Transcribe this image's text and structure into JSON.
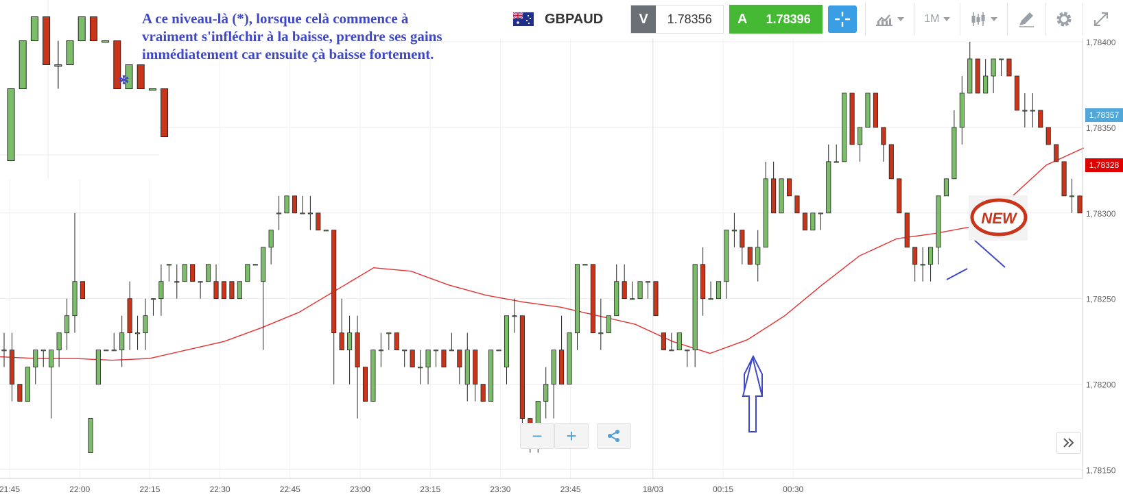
{
  "annotation": {
    "note": "A ce niveau-là (*), lorsque celà commence à vraiment s'infléchir à la baisse, prendre ses gains immédiatement car ensuite çà baisse fortement.",
    "asterisk": "*",
    "new_badge": "NEW"
  },
  "toolbar": {
    "pair": "GBPAUD",
    "sell_label": "V",
    "sell_price": "1.78356",
    "buy_label": "A",
    "buy_price": "1.78396",
    "timeframe": "1M"
  },
  "zoom": {
    "minus": "−",
    "plus": "+"
  },
  "price_badges": {
    "current": {
      "label": "1,78357",
      "color": "#4fa8d8"
    },
    "ma": {
      "label": "1,78328",
      "color": "#e00000"
    }
  },
  "colors": {
    "up": "#7cbd6a",
    "down": "#c8351a",
    "ma": "#e53030",
    "annotation": "#3f49c6"
  },
  "chart_data": {
    "type": "candlestick",
    "instrument": "GBPAUD",
    "interval": "1M",
    "y_ticks": [
      "1,78150",
      "1,78200",
      "1,78250",
      "1,78300",
      "1,78350",
      "1,78400"
    ],
    "x_ticks": [
      "21:45",
      "22:00",
      "22:15",
      "22:30",
      "22:45",
      "23:00",
      "23:15",
      "23:30",
      "23:45",
      "18/03",
      "00:15",
      "00:30"
    ],
    "ylim": [
      1.78145,
      1.78402
    ],
    "grid": true,
    "candles": [
      [
        1.7822,
        1.7823,
        1.7821,
        1.7822
      ],
      [
        1.7822,
        1.7823,
        1.7819,
        1.782
      ],
      [
        1.782,
        1.782,
        1.7819,
        1.7819
      ],
      [
        1.7819,
        1.7821,
        1.7819,
        1.7821
      ],
      [
        1.7821,
        1.7822,
        1.782,
        1.7822
      ],
      [
        1.7822,
        1.7822,
        1.7821,
        1.7822
      ],
      [
        1.7821,
        1.7822,
        1.7818,
        1.7822
      ],
      [
        1.7822,
        1.7823,
        1.7821,
        1.7823
      ],
      [
        1.7823,
        1.7825,
        1.7822,
        1.7824
      ],
      [
        1.7824,
        1.783,
        1.7823,
        1.7826
      ],
      [
        1.7826,
        1.7826,
        1.7825,
        1.7825
      ],
      [
        1.7816,
        1.7818,
        1.7816,
        1.7818
      ],
      [
        1.782,
        1.7822,
        1.782,
        1.7822
      ],
      [
        1.7822,
        1.7822,
        1.7822,
        1.7822
      ],
      [
        1.7822,
        1.7823,
        1.7822,
        1.7822
      ],
      [
        1.7822,
        1.7824,
        1.7821,
        1.7823
      ],
      [
        1.7825,
        1.7826,
        1.7822,
        1.7823
      ],
      [
        1.7823,
        1.7824,
        1.7822,
        1.7823
      ],
      [
        1.7823,
        1.7825,
        1.7822,
        1.7824
      ],
      [
        1.7825,
        1.7825,
        1.7824,
        1.7825
      ],
      [
        1.7825,
        1.7827,
        1.7824,
        1.7826
      ],
      [
        1.7827,
        1.7827,
        1.7826,
        1.7827
      ],
      [
        1.7826,
        1.7827,
        1.7825,
        1.7826
      ],
      [
        1.7826,
        1.7827,
        1.7826,
        1.7827
      ],
      [
        1.7827,
        1.7827,
        1.7826,
        1.7826
      ],
      [
        1.7826,
        1.7826,
        1.7825,
        1.7826
      ],
      [
        1.7826,
        1.7827,
        1.7826,
        1.7827
      ],
      [
        1.7826,
        1.7827,
        1.7825,
        1.7825
      ],
      [
        1.7826,
        1.7826,
        1.7825,
        1.7825
      ],
      [
        1.7826,
        1.7826,
        1.7825,
        1.7825
      ],
      [
        1.7825,
        1.7826,
        1.7825,
        1.7826
      ],
      [
        1.7826,
        1.7827,
        1.7826,
        1.7827
      ],
      [
        1.7827,
        1.7827,
        1.7827,
        1.7827
      ],
      [
        1.7826,
        1.7828,
        1.7822,
        1.7828
      ],
      [
        1.7828,
        1.7829,
        1.7827,
        1.7829
      ],
      [
        1.783,
        1.7831,
        1.7829,
        1.783
      ],
      [
        1.783,
        1.7831,
        1.783,
        1.7831
      ],
      [
        1.7831,
        1.7831,
        1.783,
        1.783
      ],
      [
        1.783,
        1.7831,
        1.783,
        1.783
      ],
      [
        1.783,
        1.7831,
        1.7829,
        1.783
      ],
      [
        1.783,
        1.783,
        1.7829,
        1.7829
      ],
      [
        1.7829,
        1.7829,
        1.7829,
        1.7829
      ],
      [
        1.7829,
        1.7829,
        1.782,
        1.7823
      ],
      [
        1.7823,
        1.7825,
        1.7822,
        1.7822
      ],
      [
        1.7822,
        1.7824,
        1.782,
        1.7823
      ],
      [
        1.7823,
        1.7824,
        1.7818,
        1.7821
      ],
      [
        1.7821,
        1.7821,
        1.7819,
        1.7819
      ],
      [
        1.7819,
        1.7822,
        1.7819,
        1.7822
      ],
      [
        1.7822,
        1.7823,
        1.7821,
        1.7822
      ],
      [
        1.7823,
        1.7823,
        1.7822,
        1.7823
      ],
      [
        1.7823,
        1.7823,
        1.7822,
        1.7822
      ],
      [
        1.7822,
        1.7822,
        1.7821,
        1.7822
      ],
      [
        1.7822,
        1.7822,
        1.7821,
        1.7821
      ],
      [
        1.7821,
        1.7822,
        1.782,
        1.7821
      ],
      [
        1.7821,
        1.7822,
        1.782,
        1.7822
      ],
      [
        1.7822,
        1.7822,
        1.7821,
        1.7822
      ],
      [
        1.7822,
        1.7822,
        1.7821,
        1.7821
      ],
      [
        1.7822,
        1.7823,
        1.7822,
        1.7822
      ],
      [
        1.7822,
        1.7822,
        1.782,
        1.7821
      ],
      [
        1.782,
        1.7823,
        1.7819,
        1.7822
      ],
      [
        1.7822,
        1.7822,
        1.7819,
        1.782
      ],
      [
        1.782,
        1.782,
        1.7819,
        1.7819
      ],
      [
        1.7819,
        1.7822,
        1.7819,
        1.7822
      ],
      [
        1.7822,
        1.7822,
        1.7822,
        1.7822
      ],
      [
        1.7821,
        1.7824,
        1.782,
        1.7824
      ],
      [
        1.7824,
        1.7825,
        1.7823,
        1.7824
      ],
      [
        1.7824,
        1.7824,
        1.7817,
        1.7818
      ],
      [
        1.7818,
        1.7818,
        1.7816,
        1.7817
      ],
      [
        1.7817,
        1.7819,
        1.7816,
        1.7819
      ],
      [
        1.7819,
        1.7821,
        1.7818,
        1.782
      ],
      [
        1.782,
        1.7822,
        1.7818,
        1.7822
      ],
      [
        1.7822,
        1.7824,
        1.782,
        1.782
      ],
      [
        1.782,
        1.7823,
        1.782,
        1.7823
      ],
      [
        1.7823,
        1.7827,
        1.7822,
        1.7827
      ],
      [
        1.7827,
        1.7827,
        1.7827,
        1.7827
      ],
      [
        1.7827,
        1.7827,
        1.7823,
        1.7823
      ],
      [
        1.7823,
        1.7825,
        1.7822,
        1.7823
      ],
      [
        1.7823,
        1.7824,
        1.7823,
        1.7824
      ],
      [
        1.7824,
        1.7827,
        1.7824,
        1.7826
      ],
      [
        1.7826,
        1.7827,
        1.7825,
        1.7825
      ],
      [
        1.7825,
        1.7826,
        1.7825,
        1.7825
      ],
      [
        1.7825,
        1.7826,
        1.7825,
        1.7826
      ],
      [
        1.7826,
        1.7826,
        1.7825,
        1.7826
      ],
      [
        1.7826,
        1.7826,
        1.7824,
        1.7824
      ],
      [
        1.7823,
        1.7823,
        1.7822,
        1.7822
      ],
      [
        1.7822,
        1.7823,
        1.7822,
        1.7822
      ],
      [
        1.7822,
        1.7823,
        1.7822,
        1.7823
      ],
      [
        1.7822,
        1.7822,
        1.7821,
        1.7822
      ],
      [
        1.7822,
        1.7827,
        1.7821,
        1.7827
      ],
      [
        1.7827,
        1.7828,
        1.7824,
        1.7825
      ],
      [
        1.7825,
        1.7826,
        1.7825,
        1.7825
      ],
      [
        1.7825,
        1.7826,
        1.7825,
        1.7826
      ],
      [
        1.7826,
        1.7829,
        1.7825,
        1.7829
      ],
      [
        1.7829,
        1.783,
        1.7828,
        1.7829
      ],
      [
        1.7829,
        1.7829,
        1.7827,
        1.7828
      ],
      [
        1.7828,
        1.7828,
        1.7827,
        1.7827
      ],
      [
        1.7827,
        1.7829,
        1.7826,
        1.7828
      ],
      [
        1.7828,
        1.7833,
        1.7828,
        1.7832
      ],
      [
        1.7832,
        1.7833,
        1.783,
        1.783
      ],
      [
        1.783,
        1.7832,
        1.783,
        1.7832
      ],
      [
        1.7832,
        1.7832,
        1.7831,
        1.7831
      ],
      [
        1.7831,
        1.7831,
        1.783,
        1.783
      ],
      [
        1.783,
        1.783,
        1.7829,
        1.7829
      ],
      [
        1.7829,
        1.783,
        1.7829,
        1.783
      ],
      [
        1.783,
        1.783,
        1.7829,
        1.783
      ],
      [
        1.783,
        1.7834,
        1.783,
        1.7833
      ],
      [
        1.7833,
        1.7834,
        1.7833,
        1.7833
      ],
      [
        1.7833,
        1.7837,
        1.7833,
        1.7837
      ],
      [
        1.7837,
        1.7837,
        1.7834,
        1.7834
      ],
      [
        1.7834,
        1.7835,
        1.7833,
        1.7835
      ],
      [
        1.7835,
        1.7837,
        1.7835,
        1.7837
      ],
      [
        1.7837,
        1.7837,
        1.7835,
        1.7835
      ],
      [
        1.7835,
        1.7835,
        1.7833,
        1.7834
      ],
      [
        1.7834,
        1.7834,
        1.7832,
        1.7832
      ],
      [
        1.7832,
        1.7832,
        1.783,
        1.783
      ],
      [
        1.783,
        1.783,
        1.7828,
        1.7828
      ],
      [
        1.7828,
        1.7828,
        1.7826,
        1.7827
      ],
      [
        1.7827,
        1.7828,
        1.7826,
        1.7827
      ],
      [
        1.7827,
        1.7828,
        1.7826,
        1.7828
      ],
      [
        1.7828,
        1.7831,
        1.7827,
        1.7831
      ],
      [
        1.7831,
        1.7832,
        1.7831,
        1.7832
      ],
      [
        1.7832,
        1.7836,
        1.7832,
        1.7835
      ],
      [
        1.7835,
        1.7838,
        1.7834,
        1.7837
      ],
      [
        1.7837,
        1.784,
        1.7837,
        1.7839
      ],
      [
        1.7839,
        1.7839,
        1.7837,
        1.7837
      ],
      [
        1.7837,
        1.7839,
        1.7837,
        1.7838
      ],
      [
        1.7838,
        1.7839,
        1.7837,
        1.7839
      ],
      [
        1.7839,
        1.7839,
        1.7838,
        1.7839
      ],
      [
        1.7839,
        1.7839,
        1.7838,
        1.7838
      ],
      [
        1.7838,
        1.7838,
        1.7836,
        1.7836
      ],
      [
        1.7836,
        1.7837,
        1.7835,
        1.7836
      ],
      [
        1.7836,
        1.7837,
        1.7835,
        1.7836
      ],
      [
        1.7836,
        1.7836,
        1.7835,
        1.7835
      ],
      [
        1.7835,
        1.7835,
        1.7834,
        1.7834
      ],
      [
        1.7834,
        1.7834,
        1.7833,
        1.7833
      ],
      [
        1.7833,
        1.7833,
        1.7831,
        1.7831
      ],
      [
        1.7831,
        1.7832,
        1.783,
        1.7831
      ],
      [
        1.7831,
        1.7831,
        1.783,
        1.783
      ]
    ],
    "moving_average": [
      1.78216,
      1.78215,
      1.78215,
      1.78214,
      1.78215,
      1.7822,
      1.78225,
      1.78233,
      1.78242,
      1.78255,
      1.78268,
      1.78266,
      1.78258,
      1.78252,
      1.78248,
      1.78245,
      1.7824,
      1.78235,
      1.78225,
      1.78218,
      1.78226,
      1.7824,
      1.78258,
      1.78275,
      1.78285,
      1.78288,
      1.78292,
      1.78308,
      1.78328,
      1.78338
    ],
    "inset": {
      "candles": [
        [
          1.7833,
          1.7836,
          1.7833,
          1.7836
        ],
        [
          1.7836,
          1.7838,
          1.7836,
          1.7838
        ],
        [
          1.7838,
          1.7839,
          1.7838,
          1.7839
        ],
        [
          1.7839,
          1.7839,
          1.7837,
          1.7837
        ],
        [
          1.7837,
          1.7838,
          1.7836,
          1.7837
        ],
        [
          1.7837,
          1.7838,
          1.7837,
          1.7838
        ],
        [
          1.7838,
          1.7839,
          1.7838,
          1.7839
        ],
        [
          1.7839,
          1.7839,
          1.7838,
          1.7838
        ],
        [
          1.7838,
          1.7838,
          1.7838,
          1.7838
        ],
        [
          1.7838,
          1.7838,
          1.7836,
          1.7836
        ],
        [
          1.7836,
          1.7837,
          1.7836,
          1.7837
        ],
        [
          1.7837,
          1.7837,
          1.7836,
          1.7836
        ],
        [
          1.7836,
          1.7836,
          1.7836,
          1.7836
        ],
        [
          1.7836,
          1.7836,
          1.7834,
          1.7834
        ]
      ]
    }
  }
}
